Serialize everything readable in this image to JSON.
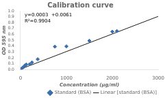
{
  "chart_data": {
    "type": "scatter",
    "title": "Calibration curve",
    "xlabel": "Concentration (μg/ml)",
    "ylabel": "OD 595 nm",
    "annotations": [
      "y=0.0003  +0.0061",
      "R²=0.9904"
    ],
    "series": [
      {
        "name": "Standard (BSA)",
        "type": "scatter",
        "color": "#3a6fad",
        "marker": "diamond",
        "x": [
          0,
          25,
          50,
          75,
          100,
          125,
          200,
          250,
          375,
          750,
          1000,
          1500,
          2000,
          2100
        ],
        "values": [
          0.005,
          0.018,
          0.03,
          0.05,
          0.07,
          0.085,
          0.09,
          0.12,
          0.175,
          0.39,
          0.395,
          0.49,
          0.645,
          0.655
        ]
      },
      {
        "name": "Linear [standard (BSA)]",
        "type": "line",
        "color": "#1a1a1a",
        "line_style": "solid",
        "x": [
          0,
          3000
        ],
        "values": [
          0.0061,
          0.9061
        ]
      }
    ],
    "xlim": [
      0,
      3000
    ],
    "ylim": [
      0,
      1.0
    ],
    "xticks": [
      0,
      1000,
      2000,
      3000
    ],
    "yticks": [
      {
        "value": 0.0,
        "label": "0.0"
      },
      0.1,
      0.2,
      0.3,
      0.4,
      0.5,
      0.6,
      0.7,
      0.8,
      0.9,
      {
        "value": 1.0,
        "label": "1.0"
      }
    ],
    "grid": false,
    "legend": "lower right"
  }
}
